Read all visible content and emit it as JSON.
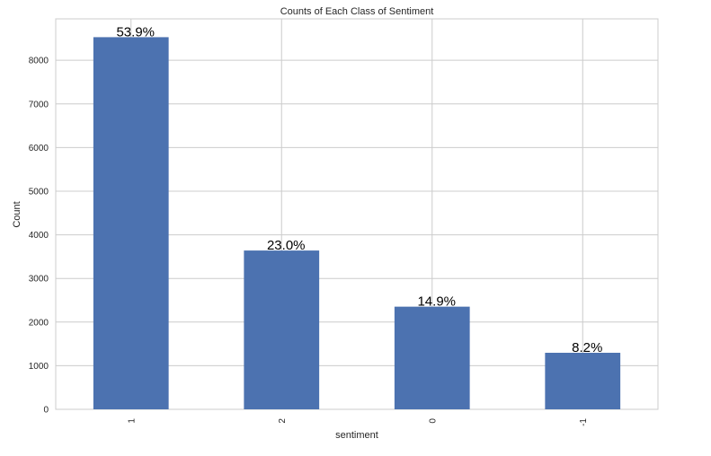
{
  "chart_data": {
    "type": "bar",
    "title": "Counts of Each Class of Sentiment",
    "xlabel": "sentiment",
    "ylabel": "Count",
    "categories": [
      "1",
      "2",
      "0",
      "-1"
    ],
    "values": [
      8530,
      3640,
      2353,
      1296
    ],
    "data_labels": [
      "53.9%",
      "23.0%",
      "14.9%",
      "8.2%"
    ],
    "ylim": [
      0,
      8950
    ],
    "yticks": [
      0,
      1000,
      2000,
      3000,
      4000,
      5000,
      6000,
      7000,
      8000
    ],
    "ytick_labels": [
      "0",
      "1000",
      "2000",
      "3000",
      "4000",
      "5000",
      "6000",
      "7000",
      "8000"
    ],
    "grid": true,
    "bar_color": "#4c72b0"
  }
}
